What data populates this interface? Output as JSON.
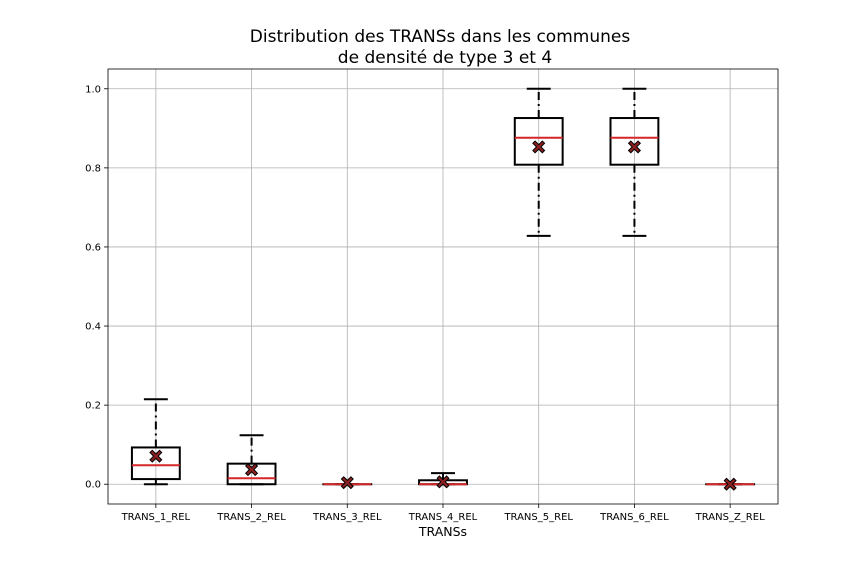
{
  "chart_data": {
    "type": "box",
    "title_lines": [
      "Distribution des TRANSs dans les communes",
      "de densité de type 3 et 4"
    ],
    "xlabel": "TRANSs",
    "ylabel": "",
    "ylim": [
      -0.05,
      1.05
    ],
    "yticks": [
      0.0,
      0.2,
      0.4,
      0.6,
      0.8,
      1.0
    ],
    "ytick_labels": [
      "0.0",
      "0.2",
      "0.4",
      "0.6",
      "0.8",
      "1.0"
    ],
    "grid": true,
    "colors": {
      "box": "#000000",
      "median": "#d62728",
      "mean_marker": "#8b2020",
      "grid": "#b0b0b0"
    },
    "categories": [
      "TRANS_1_REL",
      "TRANS_2_REL",
      "TRANS_3_REL",
      "TRANS_4_REL",
      "TRANS_5_REL",
      "TRANS_6_REL",
      "TRANS_Z_REL"
    ],
    "boxes": [
      {
        "whislo": 0.0,
        "q1": 0.013,
        "med": 0.048,
        "q3": 0.093,
        "whishi": 0.215,
        "mean": 0.071
      },
      {
        "whislo": 0.0,
        "q1": 0.0,
        "med": 0.015,
        "q3": 0.052,
        "whishi": 0.124,
        "mean": 0.037
      },
      {
        "whislo": 0.0,
        "q1": 0.0,
        "med": 0.0,
        "q3": 0.0,
        "whishi": 0.0,
        "mean": 0.004
      },
      {
        "whislo": 0.0,
        "q1": 0.0,
        "med": 0.0,
        "q3": 0.01,
        "whishi": 0.028,
        "mean": 0.006
      },
      {
        "whislo": 0.628,
        "q1": 0.808,
        "med": 0.876,
        "q3": 0.926,
        "whishi": 1.0,
        "mean": 0.853
      },
      {
        "whislo": 0.628,
        "q1": 0.808,
        "med": 0.876,
        "q3": 0.926,
        "whishi": 1.0,
        "mean": 0.853
      },
      {
        "whislo": 0.0,
        "q1": 0.0,
        "med": 0.0,
        "q3": 0.0,
        "whishi": 0.0,
        "mean": 0.0
      }
    ]
  }
}
